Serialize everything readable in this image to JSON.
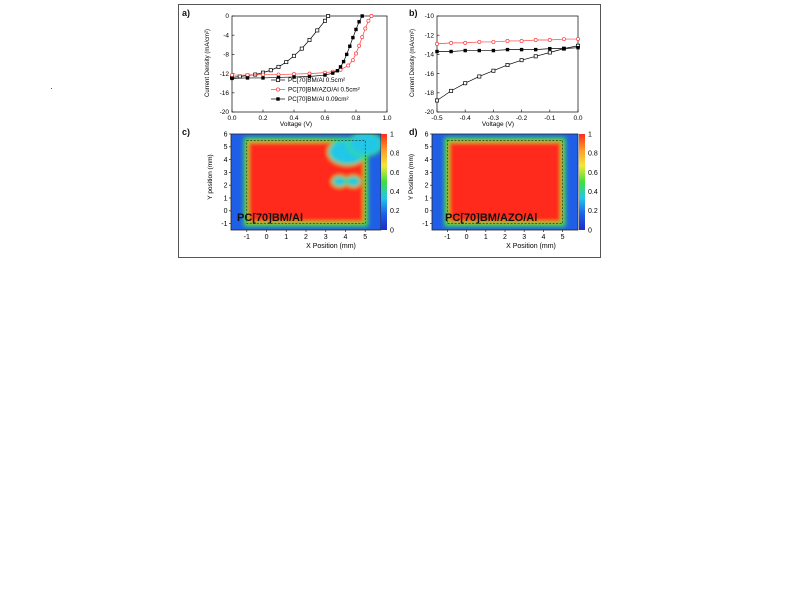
{
  "colors": {
    "series_open_black": "#000000",
    "series_red": "#ff3b3b",
    "series_filled_black": "#000000",
    "frame": "#555555",
    "colorscale": [
      "#1e2cc8",
      "#1f5fe8",
      "#22c7e8",
      "#3de03d",
      "#f2e838",
      "#ff9a2a",
      "#ff2a1c"
    ]
  },
  "panels": {
    "a": {
      "label": "a)"
    },
    "b": {
      "label": "b)"
    },
    "c": {
      "label": "c)",
      "overlay": "PC[70]BM/Al"
    },
    "d": {
      "label": "d)",
      "overlay": "PC[70]BM/AZO/Al"
    }
  },
  "chart_data": [
    {
      "id": "a",
      "type": "line",
      "xlabel": "Voltage (V)",
      "ylabel": "Current Density (mA/cm²)",
      "xlim": [
        0.0,
        1.0
      ],
      "ylim": [
        -20,
        0
      ],
      "xticks": [
        "0.0",
        "0.2",
        "0.4",
        "0.6",
        "0.8",
        "1.0"
      ],
      "yticks": [
        "-20",
        "-16",
        "-12",
        "-8",
        "-4",
        "0"
      ],
      "legend_position": "bottom-right",
      "series": [
        {
          "name": "PC[70]BM/Al 0.5cm²",
          "marker": "open-square",
          "color": "#000000",
          "x": [
            0.0,
            0.05,
            0.1,
            0.15,
            0.2,
            0.25,
            0.3,
            0.35,
            0.4,
            0.45,
            0.5,
            0.55,
            0.6,
            0.62
          ],
          "y": [
            -12.8,
            -12.6,
            -12.4,
            -12.2,
            -11.8,
            -11.3,
            -10.6,
            -9.6,
            -8.3,
            -6.8,
            -5.0,
            -3.0,
            -1.0,
            0.0
          ]
        },
        {
          "name": "PC[70]BM/AZO/Al 0.5cm²",
          "marker": "open-circle",
          "color": "#ff3b3b",
          "x": [
            0.0,
            0.1,
            0.2,
            0.3,
            0.4,
            0.5,
            0.6,
            0.65,
            0.7,
            0.75,
            0.78,
            0.8,
            0.82,
            0.84,
            0.86,
            0.88,
            0.9
          ],
          "y": [
            -12.3,
            -12.3,
            -12.2,
            -12.2,
            -12.1,
            -12.0,
            -11.8,
            -11.6,
            -11.2,
            -10.3,
            -9.2,
            -7.8,
            -6.2,
            -4.4,
            -2.6,
            -1.0,
            0.0
          ]
        },
        {
          "name": "PC[70]BM/Al 0.09cm²",
          "marker": "filled-square",
          "color": "#000000",
          "x": [
            0.0,
            0.1,
            0.2,
            0.3,
            0.4,
            0.5,
            0.6,
            0.65,
            0.68,
            0.7,
            0.72,
            0.74,
            0.76,
            0.78,
            0.8,
            0.82,
            0.84
          ],
          "y": [
            -13.0,
            -12.9,
            -12.9,
            -12.8,
            -12.7,
            -12.6,
            -12.3,
            -11.9,
            -11.4,
            -10.6,
            -9.5,
            -8.0,
            -6.3,
            -4.5,
            -2.8,
            -1.2,
            0.0
          ]
        }
      ]
    },
    {
      "id": "b",
      "type": "line",
      "xlabel": "Voltage (V)",
      "ylabel": "Current Density (mA/cm²)",
      "xlim": [
        -0.5,
        0.0
      ],
      "ylim": [
        -20,
        -10
      ],
      "xticks": [
        "-0.5",
        "-0.4",
        "-0.3",
        "-0.2",
        "-0.1",
        "0.0"
      ],
      "yticks": [
        "-20",
        "-18",
        "-16",
        "-14",
        "-12",
        "-10"
      ],
      "series": [
        {
          "ref": "PC[70]BM/Al 0.5cm²",
          "marker": "open-square",
          "color": "#000000",
          "x": [
            -0.5,
            -0.45,
            -0.4,
            -0.35,
            -0.3,
            -0.25,
            -0.2,
            -0.15,
            -0.1,
            -0.05,
            0.0
          ],
          "y": [
            -18.8,
            -17.8,
            -17.0,
            -16.3,
            -15.7,
            -15.1,
            -14.6,
            -14.2,
            -13.8,
            -13.4,
            -13.1
          ]
        },
        {
          "ref": "PC[70]BM/AZO/Al 0.5cm²",
          "marker": "open-circle",
          "color": "#ff3b3b",
          "x": [
            -0.5,
            -0.45,
            -0.4,
            -0.35,
            -0.3,
            -0.25,
            -0.2,
            -0.15,
            -0.1,
            -0.05,
            0.0
          ],
          "y": [
            -12.9,
            -12.8,
            -12.8,
            -12.7,
            -12.7,
            -12.6,
            -12.6,
            -12.5,
            -12.5,
            -12.4,
            -12.4
          ]
        },
        {
          "ref": "PC[70]BM/Al 0.09cm²",
          "marker": "filled-square",
          "color": "#000000",
          "x": [
            -0.5,
            -0.45,
            -0.4,
            -0.35,
            -0.3,
            -0.25,
            -0.2,
            -0.15,
            -0.1,
            -0.05,
            0.0
          ],
          "y": [
            -13.7,
            -13.7,
            -13.6,
            -13.6,
            -13.6,
            -13.5,
            -13.5,
            -13.5,
            -13.4,
            -13.4,
            -13.3
          ]
        }
      ]
    },
    {
      "id": "c",
      "type": "heatmap",
      "xlabel": "X Position (mm)",
      "ylabel": "Y position (mm)",
      "xlim": [
        -1.8,
        5.8
      ],
      "ylim": [
        -1.5,
        6.0
      ],
      "xticks": [
        "-1",
        "0",
        "1",
        "2",
        "3",
        "4",
        "5"
      ],
      "yticks": [
        "-1",
        "0",
        "1",
        "2",
        "3",
        "4",
        "5",
        "6"
      ],
      "colorbar": {
        "range": [
          0,
          1
        ],
        "ticks": [
          "0",
          "0.2",
          "0.4",
          "0.6",
          "0.8",
          "1"
        ]
      },
      "device_area_mm": {
        "x": [
          -1.0,
          5.0
        ],
        "y": [
          -1.0,
          5.5
        ]
      },
      "low_regions": [
        {
          "x": 4.1,
          "y": 4.6,
          "r": 0.9
        },
        {
          "x": 5.0,
          "y": 5.2,
          "r": 0.8
        },
        {
          "x": 3.7,
          "y": 2.3,
          "r": 0.3
        },
        {
          "x": 4.4,
          "y": 2.3,
          "r": 0.3
        }
      ]
    },
    {
      "id": "d",
      "type": "heatmap",
      "xlabel": "X Position (mm)",
      "ylabel": "Y Position (mm)",
      "xlim": [
        -1.8,
        5.8
      ],
      "ylim": [
        -1.5,
        6.0
      ],
      "xticks": [
        "-1",
        "0",
        "1",
        "2",
        "3",
        "4",
        "5"
      ],
      "yticks": [
        "-1",
        "0",
        "1",
        "2",
        "3",
        "4",
        "5",
        "6"
      ],
      "colorbar": {
        "range": [
          0,
          1
        ],
        "ticks": [
          "0",
          "0.2",
          "0.4",
          "0.6",
          "0.8",
          "1"
        ]
      },
      "device_area_mm": {
        "x": [
          -1.0,
          5.0
        ],
        "y": [
          -1.0,
          5.5
        ]
      },
      "low_regions": []
    }
  ]
}
